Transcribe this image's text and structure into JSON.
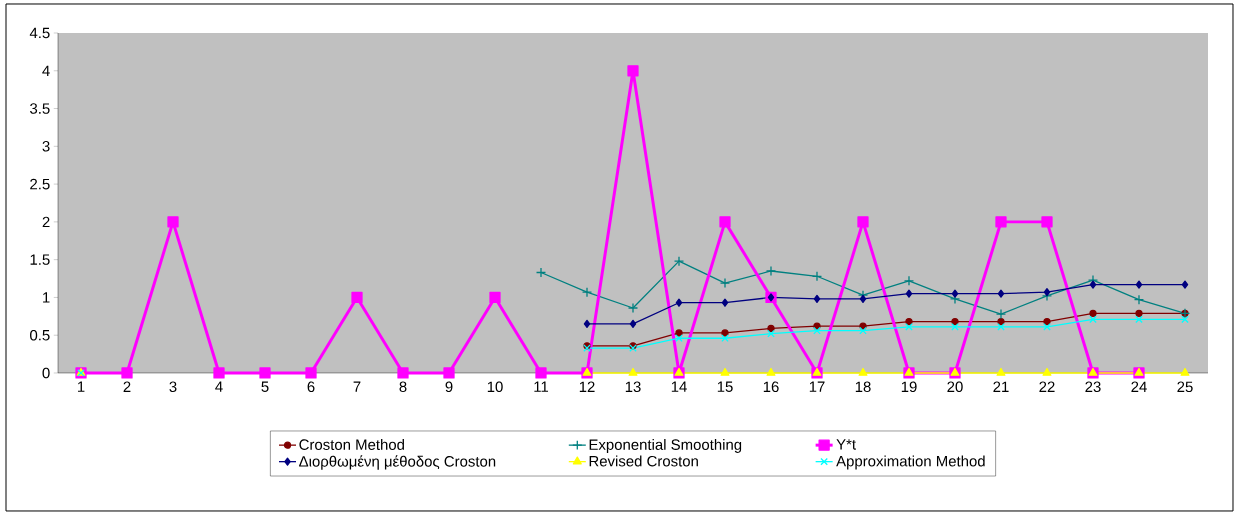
{
  "chart_data": {
    "type": "line",
    "categories": [
      "1",
      "2",
      "3",
      "4",
      "5",
      "6",
      "7",
      "8",
      "9",
      "10",
      "11",
      "12",
      "13",
      "14",
      "15",
      "16",
      "17",
      "18",
      "19",
      "20",
      "21",
      "22",
      "23",
      "24",
      "25"
    ],
    "series": [
      {
        "name": "Croston Method",
        "color": "#800000",
        "marker": "circle",
        "values": [
          null,
          null,
          null,
          null,
          null,
          null,
          null,
          null,
          null,
          null,
          null,
          0.36,
          0.36,
          0.53,
          0.53,
          0.59,
          0.62,
          0.62,
          0.68,
          0.68,
          0.68,
          0.68,
          0.79,
          0.79,
          0.79
        ]
      },
      {
        "name": "Exponential Smoothing",
        "color": "#008080",
        "marker": "cross",
        "values": [
          null,
          null,
          null,
          null,
          null,
          null,
          null,
          null,
          null,
          null,
          1.33,
          1.07,
          0.86,
          1.48,
          1.19,
          1.35,
          1.28,
          1.03,
          1.22,
          0.98,
          0.78,
          1.02,
          1.23,
          0.97,
          0.79
        ]
      },
      {
        "name": "Y*t",
        "color": "#ff00ff",
        "marker": "square",
        "values": [
          0,
          0,
          2,
          0,
          0,
          0,
          1,
          0,
          0,
          1,
          0,
          0,
          4,
          0,
          2,
          1,
          0,
          2,
          0,
          0,
          2,
          2,
          0,
          0,
          null
        ]
      },
      {
        "name": "Διορθωμένη μέθοδος Croston",
        "color": "#000080",
        "marker": "diamond",
        "values": [
          null,
          null,
          null,
          null,
          null,
          null,
          null,
          null,
          null,
          null,
          null,
          0.65,
          0.65,
          0.93,
          0.93,
          1.0,
          0.98,
          0.98,
          1.05,
          1.05,
          1.05,
          1.07,
          1.17,
          1.17,
          1.17
        ]
      },
      {
        "name": "Revised Croston",
        "color": "#ffff00",
        "marker": "triangle",
        "values": [
          0,
          null,
          null,
          null,
          null,
          null,
          null,
          null,
          null,
          null,
          null,
          0,
          0,
          0,
          0,
          0,
          0,
          0,
          0,
          0,
          0,
          0,
          0,
          0,
          0
        ]
      },
      {
        "name": "Approximation Method",
        "color": "#00ffff",
        "marker": "cross",
        "values": [
          0,
          null,
          null,
          null,
          null,
          null,
          null,
          null,
          null,
          null,
          null,
          0.33,
          0.33,
          0.46,
          0.46,
          0.52,
          0.56,
          0.56,
          0.61,
          0.61,
          0.61,
          0.61,
          0.71,
          0.71,
          0.71
        ]
      }
    ],
    "ylim": [
      0,
      4.5
    ],
    "yticks": [
      0,
      0.5,
      1,
      1.5,
      2,
      2.5,
      3,
      3.5,
      4,
      4.5
    ],
    "grid": false,
    "legend": "bottom"
  }
}
